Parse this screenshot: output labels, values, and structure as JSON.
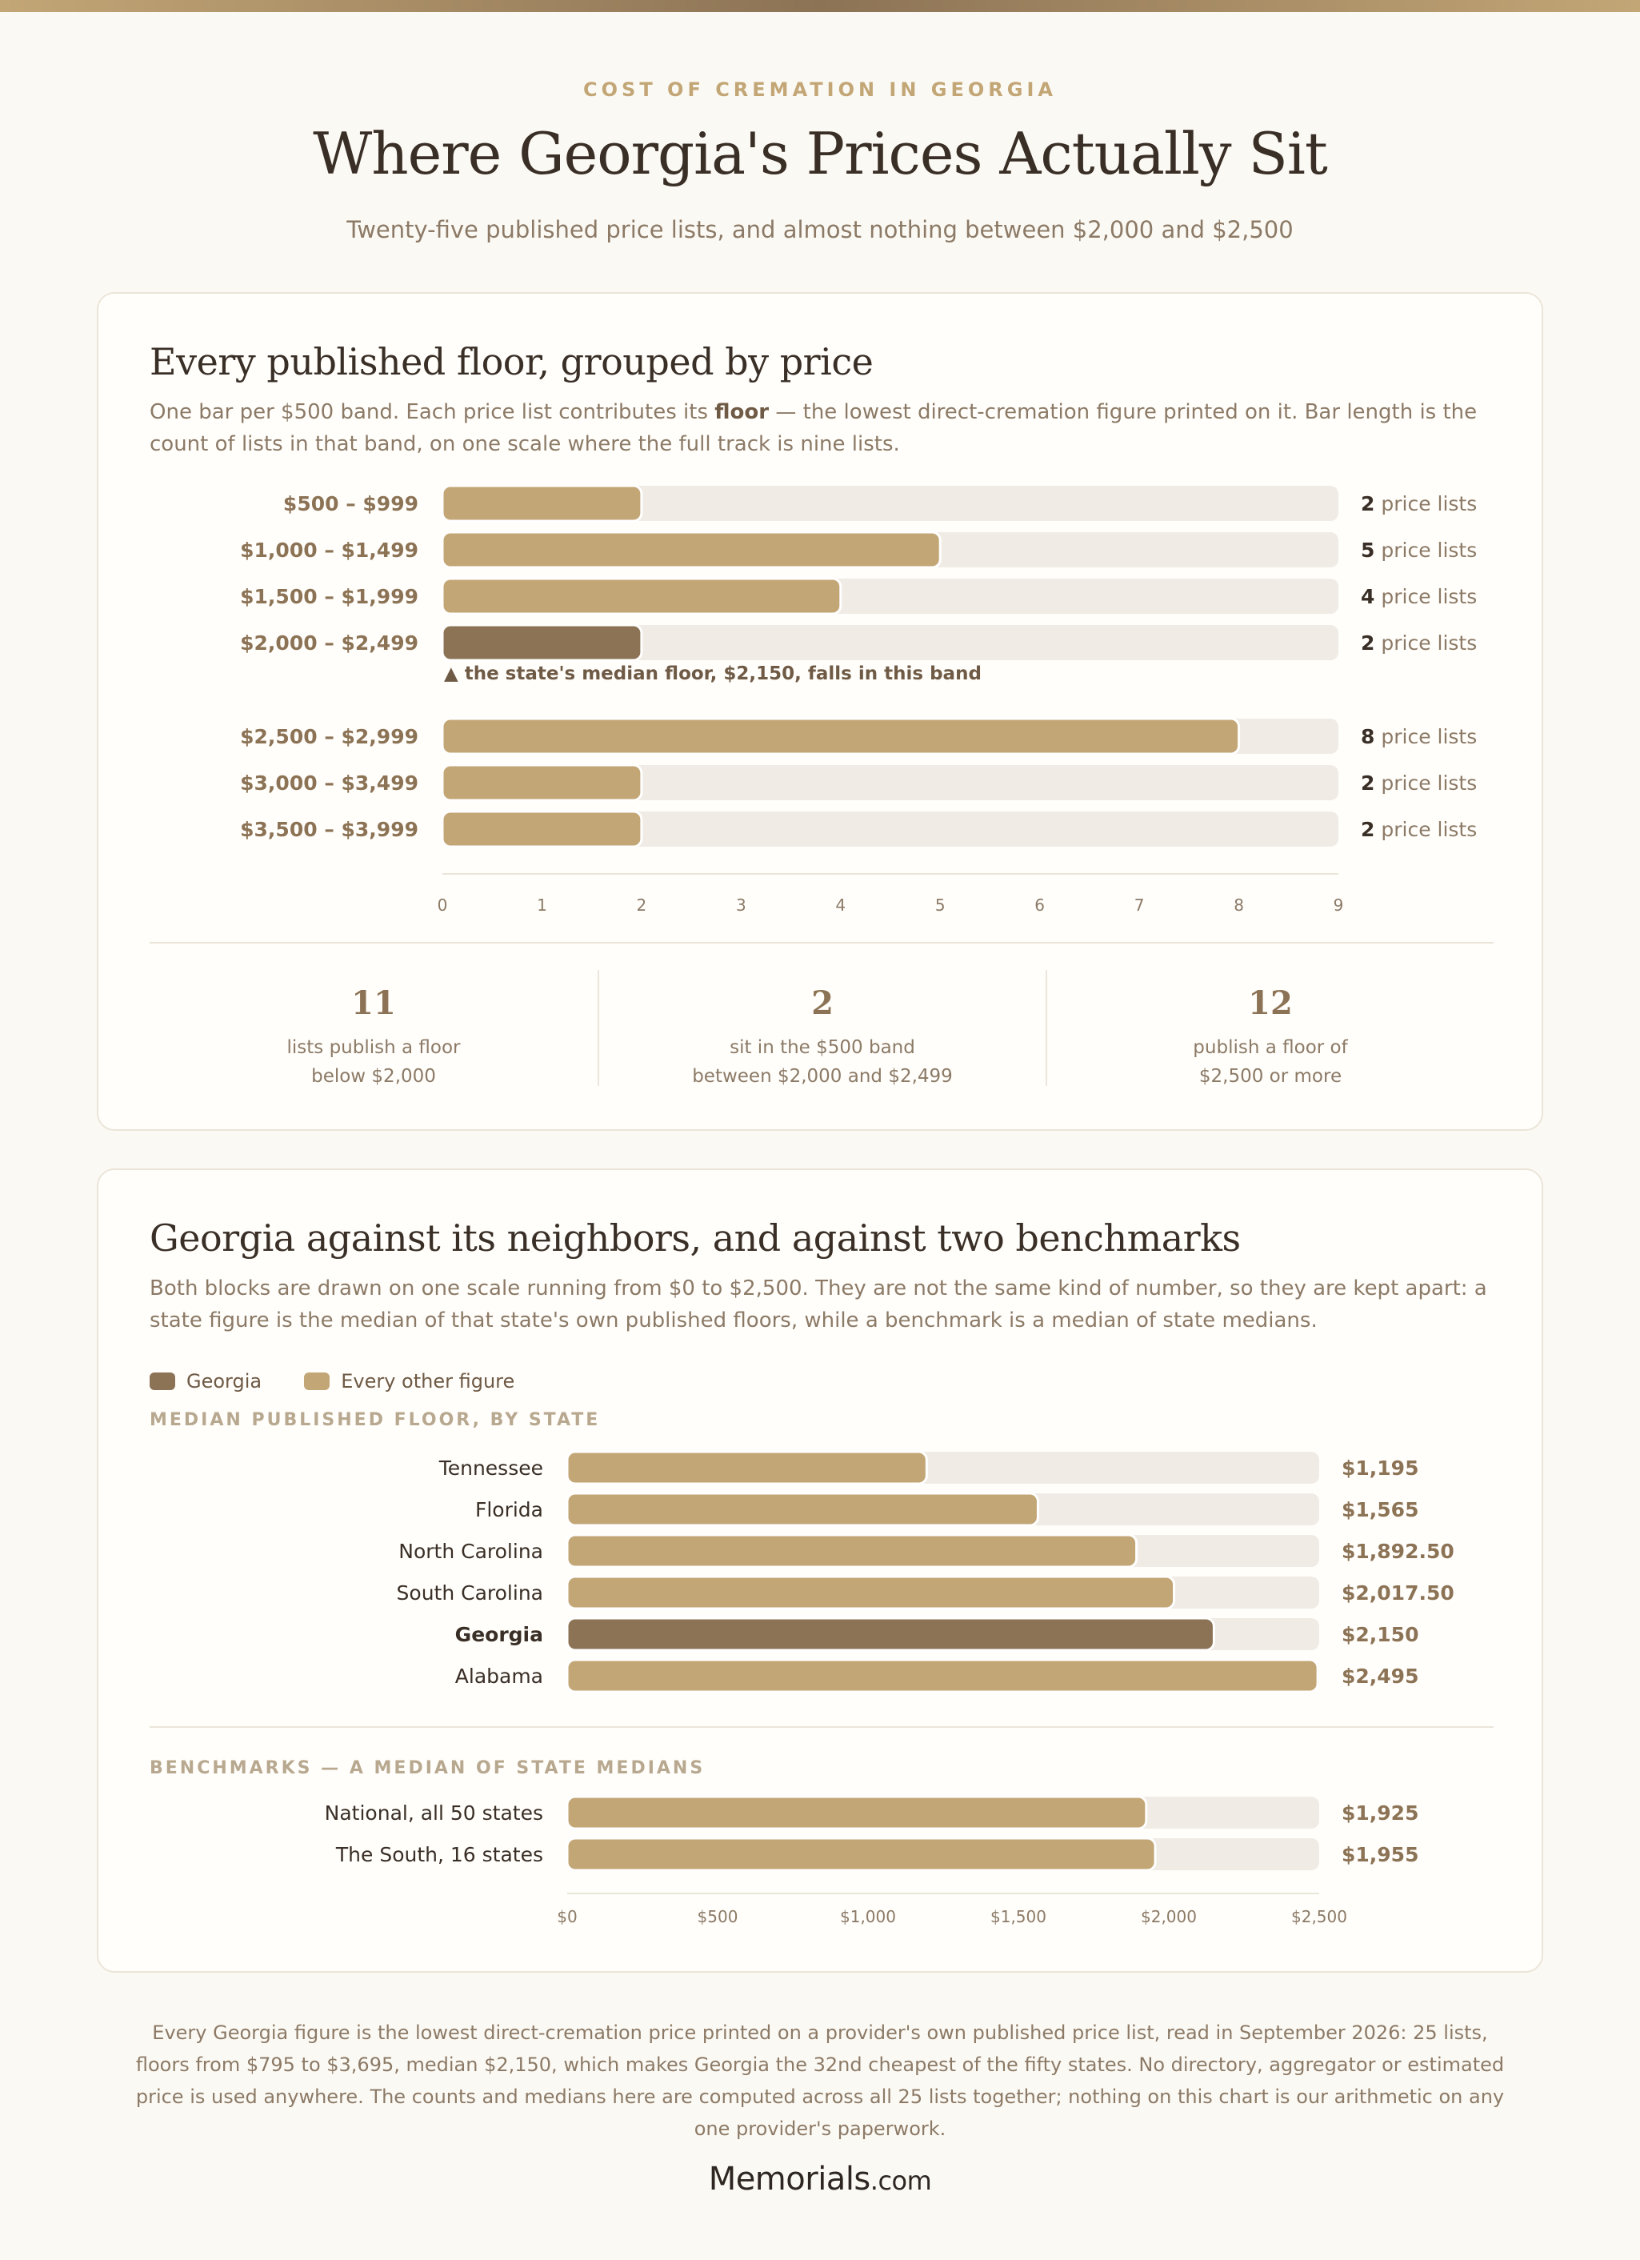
{
  "header": {
    "eyebrow": "COST OF CREMATION IN GEORGIA",
    "title": "Where Georgia's Prices Actually Sit",
    "subtitle": "Twenty-five published price lists, and almost nothing between $2,000 and $2,500"
  },
  "colors": {
    "accent": "#c3a676",
    "highlight": "#8c7355",
    "track": "#f0ebe4"
  },
  "card1": {
    "title": "Every published floor, grouped by price",
    "desc_before": "One bar per $500 band. Each price list contributes its ",
    "desc_bold": "floor",
    "desc_after": " — the lowest direct-cremation figure printed on it. Bar length is the count of lists in that band, on one scale where the full track is nine lists.",
    "stats": [
      {
        "num": "11",
        "line1": "lists publish a floor",
        "line2": "below $2,000"
      },
      {
        "num": "2",
        "line1": "sit in the $500 band",
        "line2": "between $2,000 and $2,499"
      },
      {
        "num": "12",
        "line1": "publish a floor of",
        "line2": "$2,500 or more"
      }
    ]
  },
  "card2": {
    "title": "Georgia against its neighbors, and against two benchmarks",
    "desc": "Both blocks are drawn on one scale running from $0 to $2,500. They are not the same kind of number, so they are kept apart: a state figure is the median of that state's own published floors, while a benchmark is a median of state medians.",
    "legend": [
      "Georgia",
      "Every other figure"
    ],
    "states_label": "MEDIAN PUBLISHED FLOOR, BY STATE",
    "benchmarks_label": "BENCHMARKS — A MEDIAN OF STATE MEDIANS"
  },
  "chart_data": [
    {
      "type": "bar",
      "orientation": "horizontal",
      "title": "Every published floor, grouped by price",
      "categories": [
        "$500 – $999",
        "$1,000 – $1,499",
        "$1,500 – $1,999",
        "$2,000 – $2,499",
        "$2,500 – $2,999",
        "$3,000 – $3,499",
        "$3,500 – $3,999"
      ],
      "values": [
        2,
        5,
        4,
        2,
        8,
        2,
        2
      ],
      "value_suffix": "price lists",
      "highlight_index": 3,
      "annotation": "▲ the state's median floor, $2,150, falls in this band",
      "xlim": [
        0,
        9
      ],
      "ticks": [
        "0",
        "1",
        "2",
        "3",
        "4",
        "5",
        "6",
        "7",
        "8",
        "9"
      ],
      "grid": false
    },
    {
      "type": "bar",
      "orientation": "horizontal",
      "title": "Georgia against its neighbors, and against two benchmarks",
      "groups": [
        {
          "name": "MEDIAN PUBLISHED FLOOR, BY STATE",
          "categories": [
            "Tennessee",
            "Florida",
            "North Carolina",
            "South Carolina",
            "Georgia",
            "Alabama"
          ],
          "values": [
            1195,
            1565,
            1892.5,
            2017.5,
            2150,
            2495
          ],
          "labels": [
            "$1,195",
            "$1,565",
            "$1,892.50",
            "$2,017.50",
            "$2,150",
            "$2,495"
          ],
          "highlight_index": 4
        },
        {
          "name": "BENCHMARKS — A MEDIAN OF STATE MEDIANS",
          "categories": [
            "National, all 50 states",
            "The South, 16 states"
          ],
          "values": [
            1925,
            1955
          ],
          "labels": [
            "$1,925",
            "$1,955"
          ]
        }
      ],
      "xlim": [
        0,
        2500
      ],
      "ticks": [
        "$0",
        "$500",
        "$1,000",
        "$1,500",
        "$2,000",
        "$2,500"
      ],
      "legend": [
        "Georgia",
        "Every other figure"
      ],
      "legend_position": "top-left"
    }
  ],
  "footer": {
    "text": "Every Georgia figure is the lowest direct-cremation price printed on a provider's own published price list, read in September 2026: 25 lists, floors from $795 to $3,695, median $2,150, which makes Georgia the 32nd cheapest of the fifty states. No directory, aggregator or estimated price is used anywhere. The counts and medians here are computed across all 25 lists together; nothing on this chart is our arithmetic on any one provider's paperwork."
  },
  "logo": {
    "name": "Memorials",
    "tld": ".com"
  }
}
